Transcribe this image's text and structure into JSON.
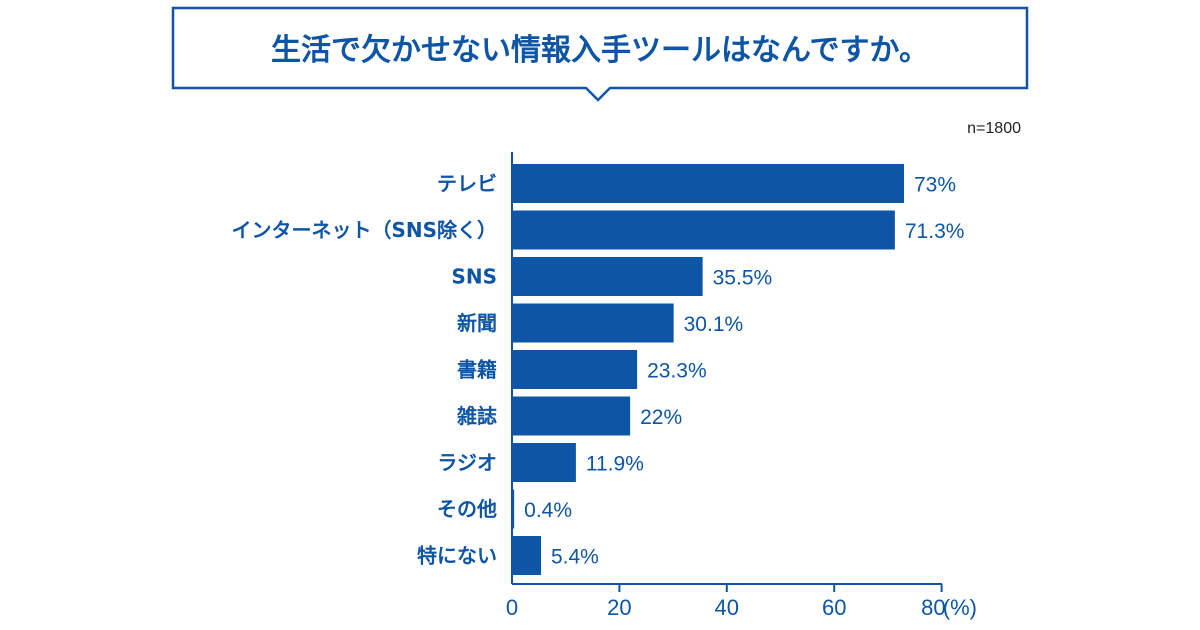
{
  "colors": {
    "accent": "#0e56a5",
    "background": "#ffffff"
  },
  "chart_data": {
    "type": "bar",
    "orientation": "horizontal",
    "title": "生活で欠かせない情報入手ツールはなんですか。",
    "sample_size": "n=1800",
    "categories": [
      "テレビ",
      "インターネット（SNS除く）",
      "SNS",
      "新聞",
      "書籍",
      "雑誌",
      "ラジオ",
      "その他",
      "特にない"
    ],
    "values": [
      73,
      71.3,
      35.5,
      30.1,
      23.3,
      22,
      11.9,
      0.4,
      5.4
    ],
    "value_labels": [
      "73%",
      "71.3%",
      "35.5%",
      "30.1%",
      "23.3%",
      "22%",
      "11.9%",
      "0.4%",
      "5.4%"
    ],
    "xlim": [
      0,
      80
    ],
    "xticks": [
      "0",
      "20",
      "40",
      "60",
      "80"
    ],
    "xunit": "(%)",
    "grid": false,
    "legend": "none"
  }
}
